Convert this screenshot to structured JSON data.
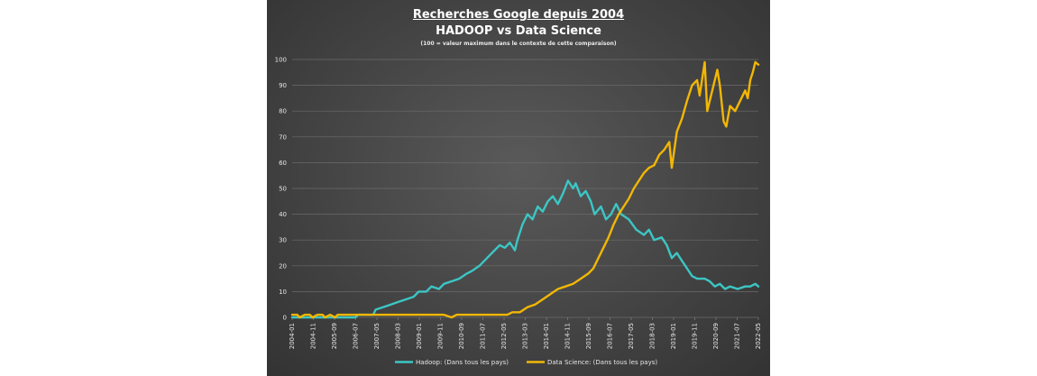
{
  "chart_data": {
    "type": "line",
    "title": "Recherches Google depuis 2004",
    "subtitle": "HADOOP vs Data Science",
    "note": "(100 = valeur maximum dans le contexte de cette comparaison)",
    "ylim": [
      0,
      100
    ],
    "y_ticks": [
      "0",
      "10",
      "20",
      "30",
      "40",
      "50",
      "60",
      "70",
      "80",
      "90",
      "100"
    ],
    "x_range": [
      2004.0,
      2022.42
    ],
    "x_ticks": [
      "2004-01",
      "2004-11",
      "2005-09",
      "2006-07",
      "2007-05",
      "2008-03",
      "2009-01",
      "2009-11",
      "2010-09",
      "2011-07",
      "2012-05",
      "2013-03",
      "2014-01",
      "2014-11",
      "2015-09",
      "2016-07",
      "2017-05",
      "2018-03",
      "2019-01",
      "2019-11",
      "2020-09",
      "2021-07",
      "2022-05"
    ],
    "grid": true,
    "legend_position": "bottom",
    "series": [
      {
        "name": "Hadoop: (Dans tous les pays)",
        "color": "#3cc6c4",
        "points": [
          [
            2004.0,
            0
          ],
          [
            2006.5,
            0
          ],
          [
            2006.6,
            1
          ],
          [
            2007.2,
            1
          ],
          [
            2007.3,
            3
          ],
          [
            2007.6,
            4
          ],
          [
            2007.9,
            5
          ],
          [
            2008.2,
            6
          ],
          [
            2008.5,
            7
          ],
          [
            2008.8,
            8
          ],
          [
            2009.0,
            10
          ],
          [
            2009.3,
            10
          ],
          [
            2009.5,
            12
          ],
          [
            2009.8,
            11
          ],
          [
            2010.0,
            13
          ],
          [
            2010.3,
            14
          ],
          [
            2010.6,
            15
          ],
          [
            2010.9,
            17
          ],
          [
            2011.1,
            18
          ],
          [
            2011.4,
            20
          ],
          [
            2011.7,
            23
          ],
          [
            2012.0,
            26
          ],
          [
            2012.2,
            28
          ],
          [
            2012.4,
            27
          ],
          [
            2012.6,
            29
          ],
          [
            2012.8,
            26
          ],
          [
            2012.9,
            30
          ],
          [
            2013.1,
            36
          ],
          [
            2013.3,
            40
          ],
          [
            2013.5,
            38
          ],
          [
            2013.7,
            43
          ],
          [
            2013.9,
            41
          ],
          [
            2014.1,
            45
          ],
          [
            2014.3,
            47
          ],
          [
            2014.5,
            44
          ],
          [
            2014.7,
            48
          ],
          [
            2014.9,
            53
          ],
          [
            2015.1,
            50
          ],
          [
            2015.2,
            52
          ],
          [
            2015.4,
            47
          ],
          [
            2015.6,
            49
          ],
          [
            2015.8,
            45
          ],
          [
            2015.95,
            40
          ],
          [
            2016.2,
            43
          ],
          [
            2016.4,
            38
          ],
          [
            2016.6,
            40
          ],
          [
            2016.8,
            44
          ],
          [
            2017.0,
            40
          ],
          [
            2017.3,
            38
          ],
          [
            2017.6,
            34
          ],
          [
            2017.9,
            32
          ],
          [
            2018.1,
            34
          ],
          [
            2018.3,
            30
          ],
          [
            2018.6,
            31
          ],
          [
            2018.8,
            28
          ],
          [
            2019.0,
            23
          ],
          [
            2019.2,
            25
          ],
          [
            2019.4,
            22
          ],
          [
            2019.6,
            19
          ],
          [
            2019.8,
            16
          ],
          [
            2020.0,
            15
          ],
          [
            2020.3,
            15
          ],
          [
            2020.5,
            14
          ],
          [
            2020.7,
            12
          ],
          [
            2020.9,
            13
          ],
          [
            2021.1,
            11
          ],
          [
            2021.3,
            12
          ],
          [
            2021.6,
            11
          ],
          [
            2021.9,
            12
          ],
          [
            2022.1,
            12
          ],
          [
            2022.3,
            13
          ],
          [
            2022.42,
            12
          ]
        ]
      },
      {
        "name": "Data Science: (Dans tous les pays)",
        "color": "#f2b705",
        "points": [
          [
            2004.0,
            1
          ],
          [
            2004.2,
            1
          ],
          [
            2004.3,
            0
          ],
          [
            2004.5,
            1
          ],
          [
            2004.7,
            1
          ],
          [
            2004.8,
            0
          ],
          [
            2005.0,
            1
          ],
          [
            2005.2,
            1
          ],
          [
            2005.3,
            0
          ],
          [
            2005.5,
            1
          ],
          [
            2005.7,
            0
          ],
          [
            2005.8,
            1
          ],
          [
            2006.0,
            1
          ],
          [
            2006.5,
            1
          ],
          [
            2009.0,
            1
          ],
          [
            2010.0,
            1
          ],
          [
            2010.3,
            0
          ],
          [
            2010.5,
            1
          ],
          [
            2012.5,
            1
          ],
          [
            2012.7,
            2
          ],
          [
            2013.0,
            2
          ],
          [
            2013.3,
            4
          ],
          [
            2013.6,
            5
          ],
          [
            2013.9,
            7
          ],
          [
            2014.2,
            9
          ],
          [
            2014.5,
            11
          ],
          [
            2014.8,
            12
          ],
          [
            2015.1,
            13
          ],
          [
            2015.4,
            15
          ],
          [
            2015.7,
            17
          ],
          [
            2015.9,
            19
          ],
          [
            2016.1,
            23
          ],
          [
            2016.3,
            27
          ],
          [
            2016.5,
            31
          ],
          [
            2016.7,
            36
          ],
          [
            2016.9,
            40
          ],
          [
            2017.1,
            43
          ],
          [
            2017.3,
            46
          ],
          [
            2017.5,
            50
          ],
          [
            2017.7,
            53
          ],
          [
            2017.9,
            56
          ],
          [
            2018.1,
            58
          ],
          [
            2018.3,
            59
          ],
          [
            2018.5,
            63
          ],
          [
            2018.7,
            65
          ],
          [
            2018.9,
            68
          ],
          [
            2019.0,
            58
          ],
          [
            2019.2,
            72
          ],
          [
            2019.4,
            77
          ],
          [
            2019.6,
            84
          ],
          [
            2019.8,
            90
          ],
          [
            2020.0,
            92
          ],
          [
            2020.1,
            86
          ],
          [
            2020.3,
            99
          ],
          [
            2020.4,
            80
          ],
          [
            2020.6,
            88
          ],
          [
            2020.8,
            96
          ],
          [
            2020.9,
            90
          ],
          [
            2021.05,
            76
          ],
          [
            2021.15,
            74
          ],
          [
            2021.3,
            82
          ],
          [
            2021.5,
            80
          ],
          [
            2021.7,
            84
          ],
          [
            2021.9,
            88
          ],
          [
            2022.0,
            85
          ],
          [
            2022.1,
            92
          ],
          [
            2022.2,
            95
          ],
          [
            2022.3,
            99
          ],
          [
            2022.42,
            98
          ]
        ]
      }
    ]
  }
}
